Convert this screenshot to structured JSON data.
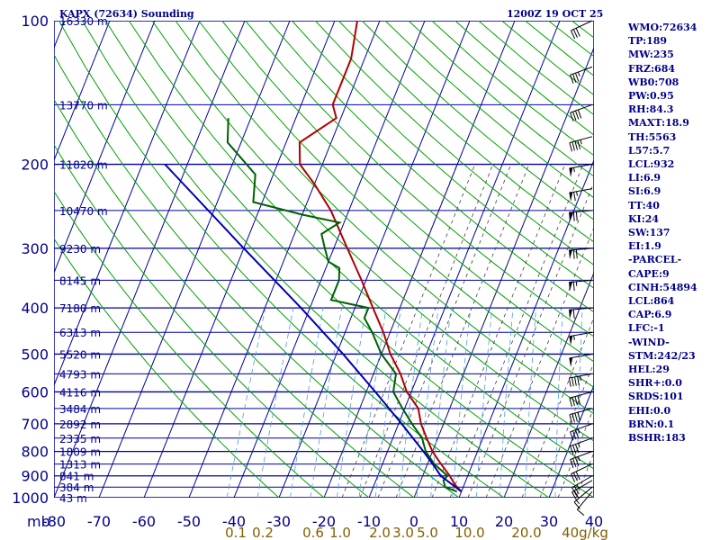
{
  "header": {
    "title": "KAPX (72634) Sounding",
    "timestamp": "1200Z 19 OCT 25"
  },
  "stats": [
    "WMO:72634",
    "TP:189",
    "MW:235",
    "FRZ:684",
    "WB0:708",
    "PW:0.95",
    "RH:84.3",
    "MAXT:18.9",
    "TH:5563",
    "L57:5.7",
    "LCL:932",
    "LI:6.9",
    "SI:6.9",
    "TT:40",
    "KI:24",
    "SW:137",
    "EI:1.9",
    "-PARCEL-",
    "CAPE:9",
    "CINH:54894",
    "LCL:864",
    "CAP:6.9",
    "LFC:-1",
    "-WIND-",
    "STM:242/23",
    "HEL:29",
    "SHR+:0.0",
    "SRDS:101",
    "EHI:0.0",
    "BRN:0.1",
    "BSHR:183"
  ],
  "colors": {
    "grid": "#0000a0",
    "isotherm": "#0000a0",
    "dry_adiabat": "#00a000",
    "moist_adiabat": "#404040",
    "mixing_ratio": "#4aa0d8",
    "temperature": "#b00000",
    "dewpoint": "#006000",
    "parcel": "#0000b0",
    "axis_text": "#00008b",
    "mixing_text": "#806000",
    "wind": "#000000"
  },
  "chart_data": {
    "type": "line",
    "diagram": "skew-t log-p",
    "pressure_axis": {
      "label": "mb",
      "ticks": [
        100,
        200,
        300,
        400,
        500,
        600,
        700,
        800,
        900,
        1000
      ],
      "range": [
        1000,
        100
      ]
    },
    "temperature_axis": {
      "ticks": [
        -80,
        -70,
        -60,
        -50,
        -40,
        -30,
        -20,
        -10,
        0,
        10,
        20,
        30,
        40
      ],
      "tick_labels": [
        "-80",
        "-70",
        "-60",
        "-50",
        "-40",
        "-30",
        "-20",
        "-10",
        "0",
        "10",
        "20",
        "30",
        "40"
      ]
    },
    "height_labels": [
      {
        "p": 100,
        "label": "16330 m"
      },
      {
        "p": 150,
        "label": "13770 m"
      },
      {
        "p": 200,
        "label": "11820 m"
      },
      {
        "p": 250,
        "label": "10470 m"
      },
      {
        "p": 300,
        "label": "9230 m"
      },
      {
        "p": 350,
        "label": "8145 m"
      },
      {
        "p": 400,
        "label": "7180 m"
      },
      {
        "p": 450,
        "label": "6313 m"
      },
      {
        "p": 500,
        "label": "5520 m"
      },
      {
        "p": 550,
        "label": "4793 m"
      },
      {
        "p": 600,
        "label": "4116 m"
      },
      {
        "p": 650,
        "label": "3484 m"
      },
      {
        "p": 700,
        "label": "2892 m"
      },
      {
        "p": 750,
        "label": "2335 m"
      },
      {
        "p": 800,
        "label": "1809 m"
      },
      {
        "p": 850,
        "label": "1313 m"
      },
      {
        "p": 900,
        "label": "841 m"
      },
      {
        "p": 950,
        "label": "384 m"
      },
      {
        "p": 1000,
        "label": "43 m"
      }
    ],
    "mixing_ratio_labels": [
      "0.1",
      "0.2",
      "0.6",
      "1.0",
      "2.0",
      "3.0",
      "5.0",
      "10.0",
      "20.0",
      "40g/kg"
    ],
    "series": [
      {
        "name": "temperature",
        "points": [
          [
            971,
            10
          ],
          [
            940,
            8
          ],
          [
            900,
            6
          ],
          [
            850,
            3
          ],
          [
            800,
            0
          ],
          [
            750,
            -2.5
          ],
          [
            700,
            -5
          ],
          [
            650,
            -7
          ],
          [
            600,
            -11
          ],
          [
            550,
            -14
          ],
          [
            500,
            -18
          ],
          [
            450,
            -21.5
          ],
          [
            400,
            -26
          ],
          [
            350,
            -31
          ],
          [
            300,
            -37
          ],
          [
            250,
            -44
          ],
          [
            220,
            -50
          ],
          [
            200,
            -55
          ],
          [
            180,
            -57
          ],
          [
            160,
            -51
          ],
          [
            150,
            -53
          ],
          [
            120,
            -53
          ],
          [
            100,
            -55
          ]
        ]
      },
      {
        "name": "dewpoint",
        "points": [
          [
            971,
            9
          ],
          [
            950,
            6
          ],
          [
            920,
            5
          ],
          [
            900,
            5.5
          ],
          [
            850,
            1.5
          ],
          [
            800,
            -1.5
          ],
          [
            750,
            -3.5
          ],
          [
            700,
            -7
          ],
          [
            650,
            -10.5
          ],
          [
            600,
            -14
          ],
          [
            550,
            -15
          ],
          [
            500,
            -20
          ],
          [
            450,
            -24
          ],
          [
            420,
            -27
          ],
          [
            400,
            -27
          ],
          [
            385,
            -36
          ],
          [
            350,
            -36
          ],
          [
            330,
            -37
          ],
          [
            320,
            -40
          ],
          [
            300,
            -42
          ],
          [
            280,
            -44
          ],
          [
            265,
            -41
          ],
          [
            255,
            -50
          ],
          [
            240,
            -62
          ],
          [
            210,
            -64
          ],
          [
            180,
            -73
          ],
          [
            160,
            -75
          ]
        ]
      },
      {
        "name": "parcel",
        "points": [
          [
            971,
            10
          ],
          [
            900,
            4
          ],
          [
            864,
            2
          ],
          [
            800,
            -2
          ],
          [
            700,
            -9.3
          ],
          [
            600,
            -18
          ],
          [
            500,
            -28.5
          ],
          [
            400,
            -42
          ],
          [
            300,
            -60
          ],
          [
            200,
            -85
          ]
        ]
      }
    ],
    "winds": [
      {
        "p": 971,
        "dir": 220,
        "spd": 10
      },
      {
        "p": 950,
        "dir": 230,
        "spd": 15
      },
      {
        "p": 920,
        "dir": 240,
        "spd": 20
      },
      {
        "p": 900,
        "dir": 240,
        "spd": 25
      },
      {
        "p": 850,
        "dir": 245,
        "spd": 30
      },
      {
        "p": 800,
        "dir": 250,
        "spd": 35
      },
      {
        "p": 750,
        "dir": 250,
        "spd": 35
      },
      {
        "p": 700,
        "dir": 250,
        "spd": 35
      },
      {
        "p": 650,
        "dir": 255,
        "spd": 40
      },
      {
        "p": 600,
        "dir": 255,
        "spd": 40
      },
      {
        "p": 550,
        "dir": 260,
        "spd": 45
      },
      {
        "p": 500,
        "dir": 260,
        "spd": 50
      },
      {
        "p": 450,
        "dir": 260,
        "spd": 55
      },
      {
        "p": 400,
        "dir": 265,
        "spd": 60
      },
      {
        "p": 350,
        "dir": 265,
        "spd": 65
      },
      {
        "p": 300,
        "dir": 265,
        "spd": 70
      },
      {
        "p": 250,
        "dir": 265,
        "spd": 70
      },
      {
        "p": 225,
        "dir": 260,
        "spd": 65
      },
      {
        "p": 200,
        "dir": 260,
        "spd": 55
      },
      {
        "p": 175,
        "dir": 255,
        "spd": 45
      },
      {
        "p": 150,
        "dir": 250,
        "spd": 40
      },
      {
        "p": 125,
        "dir": 250,
        "spd": 35
      },
      {
        "p": 100,
        "dir": 245,
        "spd": 30
      }
    ]
  }
}
